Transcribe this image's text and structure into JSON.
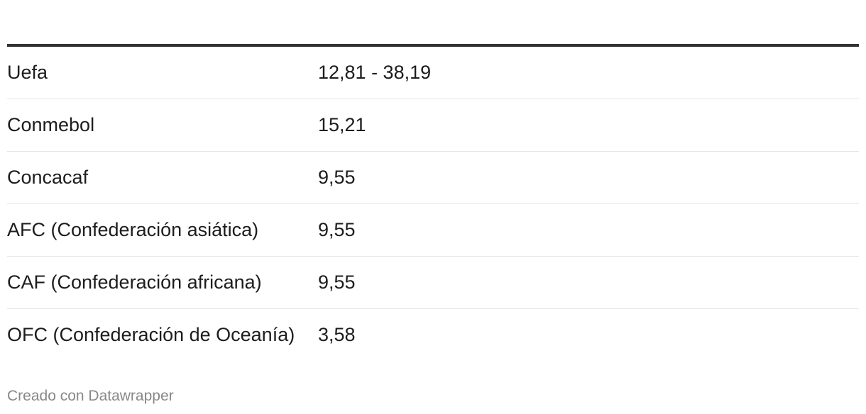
{
  "table": {
    "rows": [
      [
        "Uefa",
        "12,81 - 38,19"
      ],
      [
        "Conmebol",
        "15,21"
      ],
      [
        "Concacaf",
        "9,55"
      ],
      [
        "AFC (Confederación asiática)",
        "9,55"
      ],
      [
        "CAF (Confederación africana)",
        "9,55"
      ],
      [
        "OFC (Confederación de Oceanía)",
        "3,58"
      ]
    ]
  },
  "footer": {
    "credit": "Creado con Datawrapper"
  }
}
